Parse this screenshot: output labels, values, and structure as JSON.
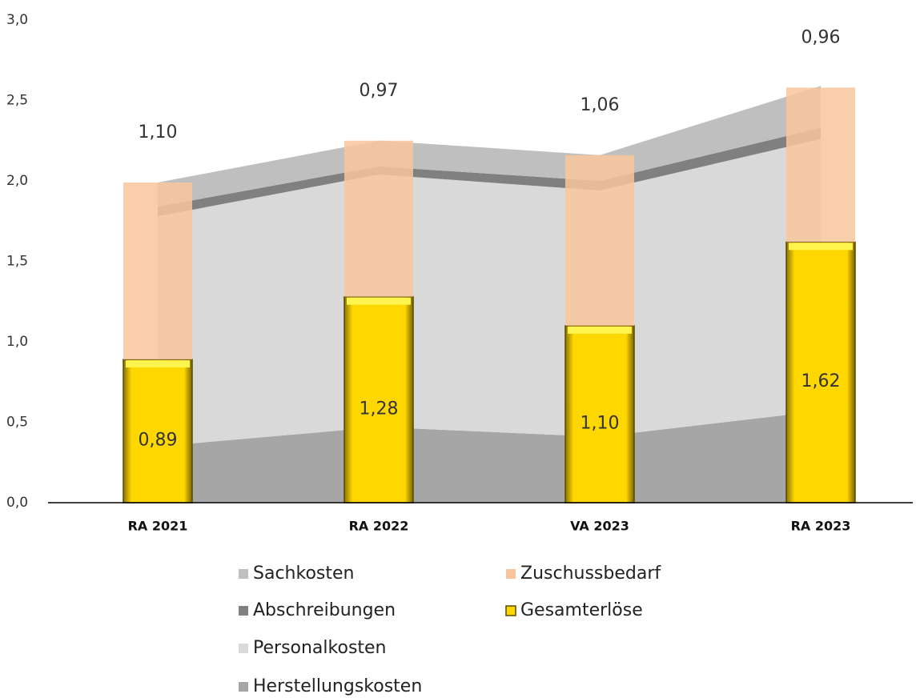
{
  "chart_data": {
    "type": "stacked-area-bar",
    "categories": [
      "RA 2021",
      "RA 2022",
      "VA 2023",
      "RA 2023"
    ],
    "areas": [
      {
        "name": "Herstellungskosten",
        "color": "#a6a6a6",
        "values": [
          0.35,
          0.47,
          0.41,
          0.57
        ]
      },
      {
        "name": "Personalkosten",
        "color": "#d9d9d9",
        "values": [
          1.43,
          1.57,
          1.53,
          1.69
        ]
      },
      {
        "name": "Abschreibungen",
        "color": "#808080",
        "values": [
          0.06,
          0.05,
          0.06,
          0.07
        ]
      },
      {
        "name": "Sachkosten",
        "color": "#bfbfbf",
        "values": [
          0.15,
          0.16,
          0.16,
          0.26
        ]
      }
    ],
    "bars": [
      {
        "name": "Gesamterlöse",
        "color": "#ffd700",
        "values": [
          0.89,
          1.28,
          1.1,
          1.62
        ],
        "value_labels": [
          "0,89",
          "1,28",
          "1,10",
          "1,62"
        ]
      },
      {
        "name": "Zuschussbedarf",
        "color": "#f8c59c",
        "values": [
          1.1,
          0.97,
          1.06,
          0.96
        ],
        "value_labels": [
          "1,10",
          "0,97",
          "1,06",
          "0,96"
        ]
      }
    ],
    "ylim": [
      0,
      3
    ],
    "yticks": [
      {
        "value": 0,
        "label": "0,0"
      },
      {
        "value": 0.5,
        "label": "0,5"
      },
      {
        "value": 1,
        "label": "1,0"
      },
      {
        "value": 1.5,
        "label": "1,5"
      },
      {
        "value": 2,
        "label": "2,0"
      },
      {
        "value": 2.5,
        "label": "2,5"
      },
      {
        "value": 3,
        "label": "3,0"
      }
    ],
    "grid": false
  }
}
